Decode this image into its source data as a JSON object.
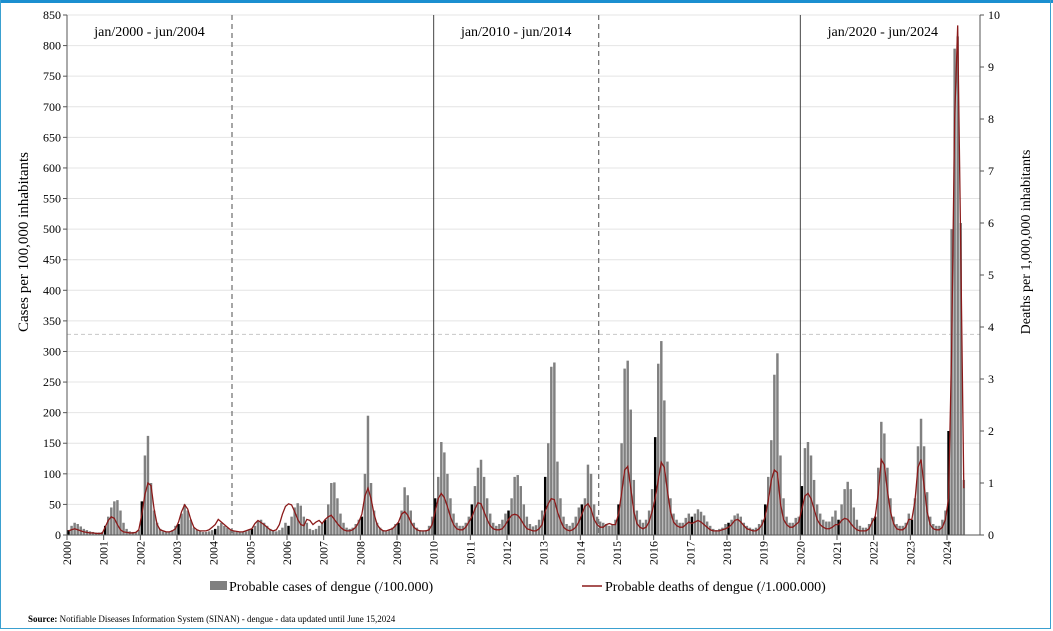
{
  "chart_data": {
    "type": "bar",
    "title": "",
    "ylabel": "Cases per 100,000 inhabitants",
    "y2label": "Deaths per 1,000,000 inhabitants",
    "ylim": [
      0,
      850
    ],
    "y2lim": [
      0,
      10
    ],
    "yticks": [
      0,
      50,
      100,
      150,
      200,
      250,
      300,
      350,
      400,
      450,
      500,
      550,
      600,
      650,
      700,
      750,
      800,
      850
    ],
    "y2ticks": [
      0,
      1,
      2,
      3,
      4,
      5,
      6,
      7,
      8,
      9,
      10
    ],
    "xticks": [
      "2000",
      "2001",
      "2002",
      "2003",
      "2004",
      "2005",
      "2006",
      "2007",
      "2008",
      "2009",
      "2010",
      "2011",
      "2012",
      "2013",
      "2014",
      "2015",
      "2016",
      "2017",
      "2018",
      "2019",
      "2020",
      "2021",
      "2022",
      "2023",
      "2024"
    ],
    "periods": [
      {
        "label": "jan/2000 - jun/2004",
        "start": 2000.0,
        "end": 2004.5,
        "end_line": "dashed"
      },
      {
        "label": "jan/2010 - jun/2014",
        "start": 2010.0,
        "end": 2014.5,
        "end_line": "dashed"
      },
      {
        "label": "jan/2020 - jun/2024",
        "start": 2020.0,
        "end": 2024.5,
        "end_line": "none"
      }
    ],
    "legend": {
      "cases": "Probable cases of dengue (/100.000)",
      "deaths": "Probable deaths of dengue (/1.000.000)"
    },
    "colors": {
      "cases": "#808080",
      "deaths": "#8b1a1a",
      "january_bar": "#000000"
    },
    "threshold_y": 328,
    "x_start": 2000,
    "series": [
      {
        "name": "Probable cases of dengue (/100.000)",
        "axis": "left",
        "values": [
          8,
          15,
          20,
          18,
          14,
          10,
          8,
          6,
          5,
          4,
          4,
          5,
          15,
          30,
          45,
          55,
          57,
          40,
          20,
          10,
          6,
          5,
          5,
          8,
          55,
          130,
          162,
          85,
          40,
          20,
          10,
          6,
          5,
          5,
          8,
          15,
          18,
          35,
          50,
          40,
          25,
          12,
          8,
          6,
          5,
          5,
          6,
          8,
          10,
          15,
          20,
          15,
          12,
          8,
          6,
          5,
          5,
          5,
          6,
          8,
          10,
          15,
          22,
          25,
          20,
          15,
          10,
          8,
          6,
          8,
          12,
          20,
          15,
          30,
          45,
          52,
          48,
          30,
          20,
          10,
          8,
          10,
          15,
          20,
          25,
          50,
          85,
          86,
          60,
          35,
          20,
          12,
          10,
          12,
          18,
          25,
          30,
          100,
          195,
          85,
          40,
          20,
          12,
          8,
          6,
          8,
          12,
          18,
          20,
          40,
          78,
          65,
          40,
          20,
          12,
          8,
          6,
          8,
          15,
          30,
          60,
          95,
          152,
          135,
          100,
          60,
          35,
          20,
          15,
          15,
          20,
          30,
          50,
          80,
          110,
          123,
          95,
          60,
          35,
          20,
          15,
          18,
          25,
          35,
          40,
          60,
          95,
          98,
          80,
          50,
          30,
          18,
          14,
          16,
          25,
          40,
          95,
          150,
          275,
          282,
          120,
          60,
          30,
          18,
          15,
          20,
          30,
          45,
          50,
          60,
          115,
          100,
          50,
          30,
          22,
          20,
          18,
          15,
          18,
          25,
          50,
          150,
          272,
          285,
          205,
          90,
          40,
          25,
          20,
          25,
          40,
          75,
          160,
          280,
          317,
          220,
          120,
          60,
          35,
          25,
          20,
          20,
          28,
          35,
          30,
          35,
          42,
          38,
          32,
          22,
          15,
          10,
          8,
          10,
          12,
          18,
          20,
          25,
          32,
          35,
          30,
          20,
          15,
          12,
          10,
          12,
          18,
          25,
          50,
          95,
          155,
          262,
          297,
          130,
          60,
          30,
          20,
          20,
          28,
          30,
          80,
          142,
          152,
          130,
          90,
          50,
          35,
          25,
          22,
          22,
          30,
          40,
          25,
          50,
          75,
          87,
          75,
          45,
          25,
          15,
          12,
          12,
          18,
          28,
          30,
          110,
          185,
          166,
          110,
          60,
          30,
          18,
          15,
          15,
          20,
          35,
          25,
          60,
          145,
          190,
          145,
          70,
          30,
          18,
          15,
          15,
          25,
          40,
          170,
          500,
          795,
          815,
          510,
          90
        ]
      },
      {
        "name": "Probable deaths of dengue (/1.000.000)",
        "axis": "right",
        "values": [
          0.08,
          0.1,
          0.12,
          0.1,
          0.08,
          0.06,
          0.05,
          0.04,
          0.04,
          0.03,
          0.03,
          0.03,
          0.15,
          0.28,
          0.35,
          0.32,
          0.2,
          0.1,
          0.06,
          0.05,
          0.04,
          0.04,
          0.05,
          0.1,
          0.4,
          0.78,
          1.0,
          0.95,
          0.5,
          0.2,
          0.1,
          0.08,
          0.06,
          0.06,
          0.08,
          0.12,
          0.25,
          0.45,
          0.58,
          0.5,
          0.3,
          0.15,
          0.1,
          0.08,
          0.08,
          0.08,
          0.1,
          0.15,
          0.2,
          0.3,
          0.25,
          0.2,
          0.15,
          0.1,
          0.08,
          0.07,
          0.06,
          0.06,
          0.08,
          0.1,
          0.12,
          0.22,
          0.28,
          0.24,
          0.2,
          0.15,
          0.1,
          0.08,
          0.1,
          0.2,
          0.4,
          0.55,
          0.6,
          0.58,
          0.45,
          0.3,
          0.2,
          0.18,
          0.3,
          0.28,
          0.2,
          0.25,
          0.28,
          0.22,
          0.3,
          0.35,
          0.38,
          0.3,
          0.22,
          0.15,
          0.1,
          0.08,
          0.08,
          0.1,
          0.15,
          0.25,
          0.4,
          0.75,
          0.9,
          0.7,
          0.4,
          0.2,
          0.12,
          0.08,
          0.08,
          0.1,
          0.12,
          0.18,
          0.25,
          0.4,
          0.45,
          0.38,
          0.25,
          0.15,
          0.1,
          0.08,
          0.08,
          0.08,
          0.1,
          0.2,
          0.45,
          0.7,
          0.8,
          0.72,
          0.55,
          0.35,
          0.2,
          0.12,
          0.1,
          0.1,
          0.15,
          0.25,
          0.35,
          0.5,
          0.62,
          0.6,
          0.45,
          0.3,
          0.18,
          0.12,
          0.1,
          0.1,
          0.12,
          0.2,
          0.3,
          0.38,
          0.4,
          0.38,
          0.3,
          0.2,
          0.12,
          0.1,
          0.08,
          0.08,
          0.12,
          0.2,
          0.45,
          0.6,
          0.7,
          0.68,
          0.45,
          0.28,
          0.15,
          0.1,
          0.08,
          0.1,
          0.15,
          0.25,
          0.4,
          0.55,
          0.6,
          0.5,
          0.3,
          0.2,
          0.15,
          0.15,
          0.2,
          0.22,
          0.2,
          0.2,
          0.4,
          0.8,
          1.25,
          1.32,
          0.9,
          0.45,
          0.22,
          0.15,
          0.12,
          0.15,
          0.25,
          0.45,
          0.7,
          1.05,
          1.4,
          1.3,
          0.85,
          0.45,
          0.25,
          0.18,
          0.15,
          0.15,
          0.2,
          0.25,
          0.22,
          0.25,
          0.28,
          0.25,
          0.2,
          0.15,
          0.1,
          0.08,
          0.08,
          0.08,
          0.1,
          0.12,
          0.15,
          0.2,
          0.28,
          0.3,
          0.25,
          0.18,
          0.12,
          0.1,
          0.08,
          0.08,
          0.12,
          0.2,
          0.35,
          0.65,
          1.05,
          1.25,
          1.2,
          0.6,
          0.3,
          0.2,
          0.15,
          0.15,
          0.2,
          0.25,
          0.5,
          0.75,
          0.8,
          0.7,
          0.5,
          0.3,
          0.2,
          0.15,
          0.12,
          0.12,
          0.15,
          0.2,
          0.2,
          0.28,
          0.32,
          0.3,
          0.22,
          0.15,
          0.1,
          0.08,
          0.08,
          0.08,
          0.12,
          0.25,
          0.35,
          0.8,
          1.45,
          1.35,
          0.85,
          0.45,
          0.22,
          0.12,
          0.1,
          0.1,
          0.15,
          0.3,
          0.3,
          0.65,
          1.3,
          1.45,
          0.95,
          0.45,
          0.2,
          0.12,
          0.1,
          0.1,
          0.15,
          0.3,
          0.7,
          3.5,
          8.0,
          9.8,
          5.5,
          0.9
        ]
      }
    ]
  },
  "footer": {
    "source_label": "Source:",
    "source_text": " Notifiable Diseases Information System (SINAN) - dengue - data updated until June 15,2024"
  }
}
